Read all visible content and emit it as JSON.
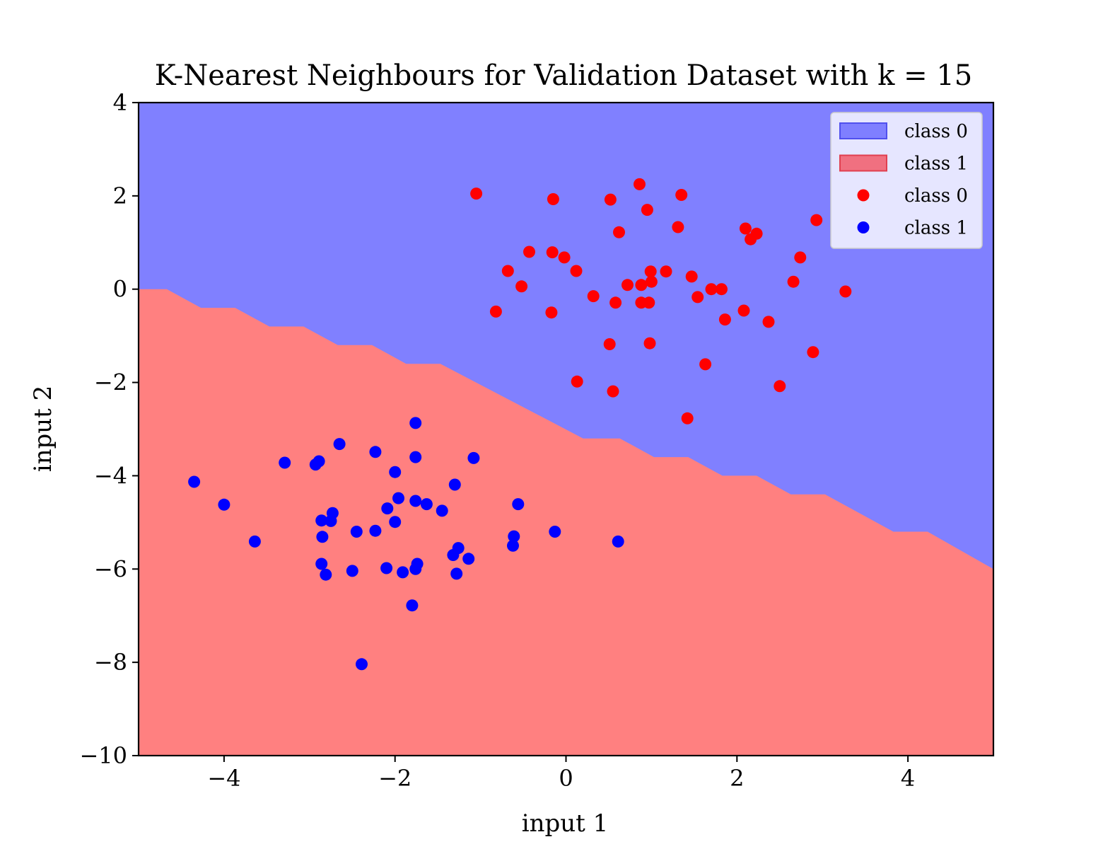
{
  "chart_data": {
    "type": "scatter",
    "title": "K-Nearest Neighbours for Validation Dataset with k = 15",
    "xlabel": "input 1",
    "ylabel": "input 2",
    "xlim": [
      -5,
      5
    ],
    "ylim": [
      -10,
      4
    ],
    "xticks": [
      -4,
      -2,
      0,
      2,
      4
    ],
    "xtick_labels": [
      "−4",
      "−2",
      "0",
      "2",
      "4"
    ],
    "yticks": [
      4,
      2,
      0,
      -2,
      -4,
      -6,
      -8,
      -10
    ],
    "ytick_labels": [
      "4",
      "2",
      "0",
      "−2",
      "−4",
      "−6",
      "−8",
      "−10"
    ],
    "grid": false,
    "legend_placement": "top-right",
    "legend": [
      {
        "label": "class 0",
        "kind": "patch",
        "color": "#7f7fff",
        "edge": "#5050ee"
      },
      {
        "label": "class 1",
        "kind": "patch",
        "color": "#f07080",
        "edge": "#e04050"
      },
      {
        "label": "class 0",
        "kind": "marker",
        "color": "#ff0000"
      },
      {
        "label": "class 1",
        "kind": "marker",
        "color": "#0000ff"
      }
    ],
    "regions": {
      "upper_color": "#8080ff",
      "lower_color": "#ff8080",
      "boundary": [
        [
          -5.0,
          0.0
        ],
        [
          -4.67,
          0.0
        ],
        [
          -4.27,
          -0.4
        ],
        [
          -3.87,
          -0.4
        ],
        [
          -3.47,
          -0.8
        ],
        [
          -3.07,
          -0.8
        ],
        [
          -2.67,
          -1.2
        ],
        [
          -2.27,
          -1.2
        ],
        [
          -1.87,
          -1.6
        ],
        [
          -1.47,
          -1.6
        ],
        [
          0.2,
          -3.2
        ],
        [
          0.63,
          -3.2
        ],
        [
          1.03,
          -3.6
        ],
        [
          1.43,
          -3.6
        ],
        [
          1.83,
          -4.0
        ],
        [
          2.23,
          -4.0
        ],
        [
          2.63,
          -4.4
        ],
        [
          3.03,
          -4.4
        ],
        [
          3.83,
          -5.2
        ],
        [
          4.23,
          -5.2
        ],
        [
          5.0,
          -6.0
        ]
      ]
    },
    "series": [
      {
        "name": "class 0",
        "color": "#ff0000",
        "points": [
          [
            -1.05,
            2.05
          ],
          [
            -0.15,
            1.93
          ],
          [
            0.52,
            1.92
          ],
          [
            0.86,
            2.25
          ],
          [
            1.35,
            2.02
          ],
          [
            0.95,
            1.7
          ],
          [
            2.93,
            1.48
          ],
          [
            0.62,
            1.22
          ],
          [
            1.31,
            1.33
          ],
          [
            2.1,
            1.3
          ],
          [
            2.23,
            1.19
          ],
          [
            2.16,
            1.07
          ],
          [
            -0.43,
            0.8
          ],
          [
            -0.16,
            0.79
          ],
          [
            -0.02,
            0.68
          ],
          [
            2.74,
            0.68
          ],
          [
            -0.68,
            0.39
          ],
          [
            0.12,
            0.39
          ],
          [
            0.99,
            0.38
          ],
          [
            1.17,
            0.38
          ],
          [
            1.47,
            0.27
          ],
          [
            -0.52,
            0.06
          ],
          [
            0.72,
            0.09
          ],
          [
            0.88,
            0.09
          ],
          [
            1.0,
            0.16
          ],
          [
            2.66,
            0.16
          ],
          [
            1.7,
            0.0
          ],
          [
            1.82,
            0.0
          ],
          [
            3.27,
            -0.05
          ],
          [
            0.32,
            -0.15
          ],
          [
            1.54,
            -0.17
          ],
          [
            0.58,
            -0.29
          ],
          [
            0.88,
            -0.29
          ],
          [
            0.97,
            -0.29
          ],
          [
            -0.82,
            -0.48
          ],
          [
            -0.17,
            -0.5
          ],
          [
            2.08,
            -0.46
          ],
          [
            1.86,
            -0.65
          ],
          [
            2.37,
            -0.7
          ],
          [
            0.51,
            -1.18
          ],
          [
            0.98,
            -1.16
          ],
          [
            2.89,
            -1.35
          ],
          [
            1.63,
            -1.61
          ],
          [
            0.13,
            -1.98
          ],
          [
            2.5,
            -2.08
          ],
          [
            0.55,
            -2.19
          ],
          [
            1.42,
            -2.77
          ]
        ]
      },
      {
        "name": "class 1",
        "color": "#0000ff",
        "points": [
          [
            -1.76,
            -2.87
          ],
          [
            -2.65,
            -3.32
          ],
          [
            -2.23,
            -3.49
          ],
          [
            -3.29,
            -3.72
          ],
          [
            -2.89,
            -3.69
          ],
          [
            -2.93,
            -3.76
          ],
          [
            -1.76,
            -3.6
          ],
          [
            -1.08,
            -3.62
          ],
          [
            -2.0,
            -3.92
          ],
          [
            -4.35,
            -4.13
          ],
          [
            -1.3,
            -4.19
          ],
          [
            -4.0,
            -4.62
          ],
          [
            -1.96,
            -4.48
          ],
          [
            -1.76,
            -4.54
          ],
          [
            -1.63,
            -4.61
          ],
          [
            -0.56,
            -4.61
          ],
          [
            -2.09,
            -4.7
          ],
          [
            -1.45,
            -4.75
          ],
          [
            -2.73,
            -4.8
          ],
          [
            -2.86,
            -4.96
          ],
          [
            -2.75,
            -4.97
          ],
          [
            -2.0,
            -4.99
          ],
          [
            -2.45,
            -5.2
          ],
          [
            -2.23,
            -5.18
          ],
          [
            -0.13,
            -5.2
          ],
          [
            -2.85,
            -5.31
          ],
          [
            -0.61,
            -5.3
          ],
          [
            -3.64,
            -5.41
          ],
          [
            0.61,
            -5.41
          ],
          [
            -0.62,
            -5.5
          ],
          [
            -1.26,
            -5.55
          ],
          [
            -1.32,
            -5.7
          ],
          [
            -1.14,
            -5.78
          ],
          [
            -2.86,
            -5.89
          ],
          [
            -1.74,
            -5.89
          ],
          [
            -2.1,
            -5.98
          ],
          [
            -1.76,
            -6.0
          ],
          [
            -2.5,
            -6.04
          ],
          [
            -1.91,
            -6.07
          ],
          [
            -2.81,
            -6.12
          ],
          [
            -1.28,
            -6.1
          ],
          [
            -1.8,
            -6.78
          ],
          [
            -2.39,
            -8.04
          ]
        ]
      }
    ]
  }
}
